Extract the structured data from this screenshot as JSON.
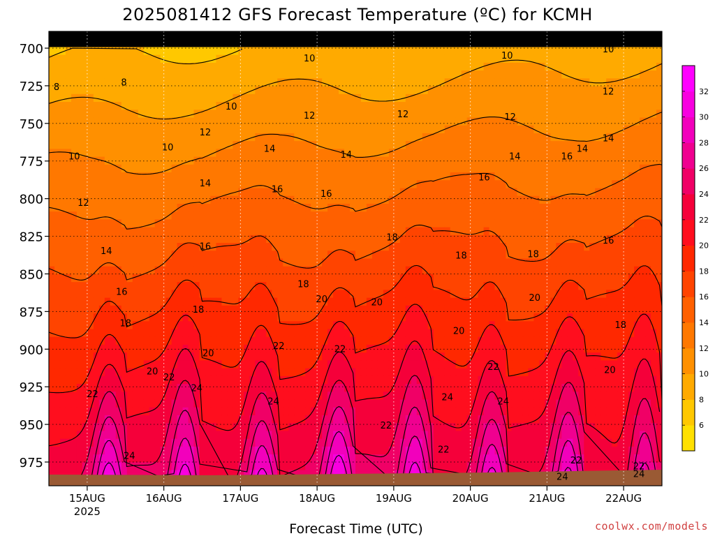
{
  "chart_data": {
    "type": "heatmap",
    "title": "2025081412 GFS Forecast Temperature (ºC) for KCMH",
    "xlabel": "Forecast Time (UTC)",
    "ylabel": "",
    "credit": "coolwx.com/models",
    "x_ticks": [
      {
        "value": 0.5,
        "label": "15AUG",
        "sublabel": "2025"
      },
      {
        "value": 1.5,
        "label": "16AUG",
        "sublabel": ""
      },
      {
        "value": 2.5,
        "label": "17AUG",
        "sublabel": ""
      },
      {
        "value": 3.5,
        "label": "18AUG",
        "sublabel": ""
      },
      {
        "value": 4.5,
        "label": "19AUG",
        "sublabel": ""
      },
      {
        "value": 5.5,
        "label": "20AUG",
        "sublabel": ""
      },
      {
        "value": 6.5,
        "label": "21AUG",
        "sublabel": ""
      },
      {
        "value": 7.5,
        "label": "22AUG",
        "sublabel": ""
      }
    ],
    "xlim": [
      0,
      8
    ],
    "y_ticks": [
      700,
      725,
      750,
      775,
      800,
      825,
      850,
      875,
      900,
      925,
      950,
      975
    ],
    "ylim_hpa": [
      690,
      995
    ],
    "y_scale": "pressure (top = low)",
    "colorbar": {
      "ticks": [
        6,
        8,
        10,
        12,
        14,
        16,
        18,
        20,
        22,
        24,
        26,
        28,
        30,
        32
      ],
      "colors": [
        "#ffe000",
        "#ffc800",
        "#ffaa00",
        "#ff9000",
        "#ff7800",
        "#ff6000",
        "#ff4400",
        "#ff2800",
        "#ff0e1e",
        "#f5003a",
        "#f00066",
        "#f00090",
        "#f200bc",
        "#f800e0",
        "#ff00ff"
      ]
    },
    "isotherm_labels": [
      {
        "x": 0.1,
        "p": 726,
        "v": "8"
      },
      {
        "x": 0.98,
        "p": 723,
        "v": "8"
      },
      {
        "x": 0.33,
        "p": 772,
        "v": "10"
      },
      {
        "x": 1.55,
        "p": 766,
        "v": "10"
      },
      {
        "x": 2.38,
        "p": 739,
        "v": "10"
      },
      {
        "x": 3.4,
        "p": 707,
        "v": "10"
      },
      {
        "x": 5.98,
        "p": 705,
        "v": "10"
      },
      {
        "x": 7.3,
        "p": 701,
        "v": "10"
      },
      {
        "x": 0.45,
        "p": 803,
        "v": "12"
      },
      {
        "x": 2.04,
        "p": 756,
        "v": "12"
      },
      {
        "x": 3.4,
        "p": 745,
        "v": "12"
      },
      {
        "x": 4.62,
        "p": 744,
        "v": "12"
      },
      {
        "x": 6.02,
        "p": 746,
        "v": "12"
      },
      {
        "x": 7.3,
        "p": 729,
        "v": "12"
      },
      {
        "x": 0.75,
        "p": 835,
        "v": "14"
      },
      {
        "x": 2.04,
        "p": 790,
        "v": "14"
      },
      {
        "x": 2.88,
        "p": 767,
        "v": "14"
      },
      {
        "x": 3.88,
        "p": 771,
        "v": "14"
      },
      {
        "x": 6.08,
        "p": 772,
        "v": "14"
      },
      {
        "x": 6.96,
        "p": 767,
        "v": "14"
      },
      {
        "x": 7.3,
        "p": 760,
        "v": "14"
      },
      {
        "x": 0.95,
        "p": 862,
        "v": "16"
      },
      {
        "x": 2.04,
        "p": 832,
        "v": "16"
      },
      {
        "x": 2.98,
        "p": 794,
        "v": "16"
      },
      {
        "x": 3.62,
        "p": 797,
        "v": "16"
      },
      {
        "x": 5.68,
        "p": 786,
        "v": "16"
      },
      {
        "x": 6.76,
        "p": 772,
        "v": "16"
      },
      {
        "x": 7.3,
        "p": 828,
        "v": "16"
      },
      {
        "x": 1.0,
        "p": 883,
        "v": "18"
      },
      {
        "x": 1.95,
        "p": 874,
        "v": "18"
      },
      {
        "x": 3.32,
        "p": 857,
        "v": "18"
      },
      {
        "x": 4.48,
        "p": 826,
        "v": "18"
      },
      {
        "x": 5.38,
        "p": 838,
        "v": "18"
      },
      {
        "x": 6.32,
        "p": 837,
        "v": "18"
      },
      {
        "x": 7.46,
        "p": 884,
        "v": "18"
      },
      {
        "x": 1.35,
        "p": 915,
        "v": "20"
      },
      {
        "x": 2.08,
        "p": 903,
        "v": "20"
      },
      {
        "x": 3.56,
        "p": 867,
        "v": "20"
      },
      {
        "x": 4.28,
        "p": 869,
        "v": "20"
      },
      {
        "x": 5.35,
        "p": 888,
        "v": "20"
      },
      {
        "x": 6.34,
        "p": 866,
        "v": "20"
      },
      {
        "x": 7.32,
        "p": 914,
        "v": "20"
      },
      {
        "x": 0.57,
        "p": 930,
        "v": "22"
      },
      {
        "x": 1.57,
        "p": 919,
        "v": "22"
      },
      {
        "x": 3.0,
        "p": 898,
        "v": "22"
      },
      {
        "x": 3.8,
        "p": 900,
        "v": "22"
      },
      {
        "x": 4.4,
        "p": 951,
        "v": "22"
      },
      {
        "x": 5.15,
        "p": 967,
        "v": "22"
      },
      {
        "x": 5.8,
        "p": 912,
        "v": "22"
      },
      {
        "x": 6.88,
        "p": 974,
        "v": "22"
      },
      {
        "x": 7.7,
        "p": 978,
        "v": "22"
      },
      {
        "x": 1.05,
        "p": 971,
        "v": "24"
      },
      {
        "x": 1.93,
        "p": 926,
        "v": "24"
      },
      {
        "x": 2.93,
        "p": 935,
        "v": "24"
      },
      {
        "x": 5.2,
        "p": 932,
        "v": "24"
      },
      {
        "x": 5.93,
        "p": 935,
        "v": "24"
      },
      {
        "x": 6.7,
        "p": 985,
        "v": "24"
      },
      {
        "x": 7.7,
        "p": 983,
        "v": "24"
      }
    ]
  }
}
